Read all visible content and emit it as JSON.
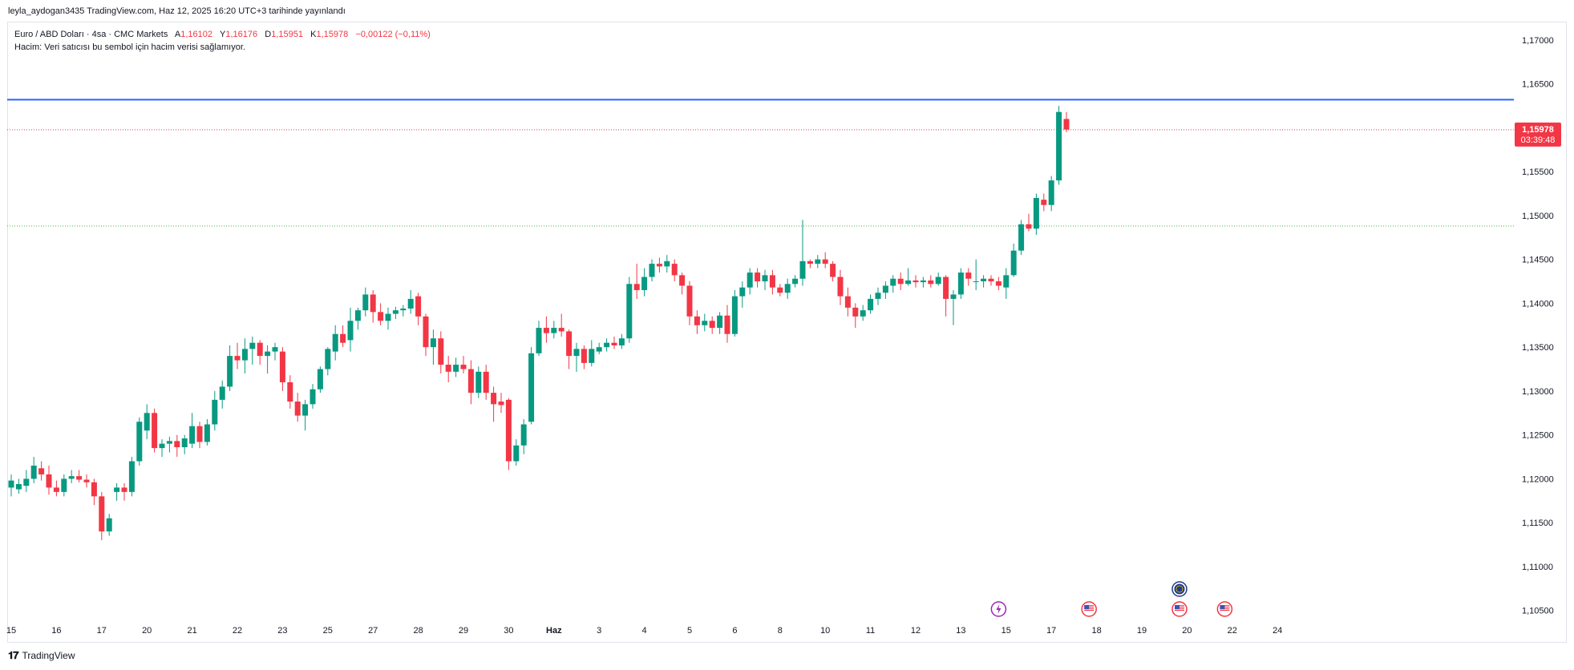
{
  "header": {
    "publish_line": "leyla_aydogan3435 TradingView.com, Haz 12, 2025 16:20 UTC+3 tarihinde yayınlandı"
  },
  "legend": {
    "symbol": "Euro / ABD Doları · 4sa · CMC Markets",
    "open_label": "A",
    "open": "1,16102",
    "high_label": "Y",
    "high": "1,16176",
    "low_label": "D",
    "low": "1,15951",
    "close_label": "K",
    "close": "1,15978",
    "change": "−0,00122 (−0,11%)",
    "volume_note": "Hacim: Veri satıcısı bu sembol için hacim verisi sağlamıyor."
  },
  "footer": {
    "brand": "TradingView",
    "logo_icon": "tradingview-logo-icon"
  },
  "colors": {
    "up": "#089981",
    "down": "#f23645",
    "blue_line": "#2962ff",
    "green_dotted": "#4caf50",
    "red_dotted": "#f23645",
    "axis_text": "#131722"
  },
  "chart_data": {
    "type": "candlestick",
    "symbol": "EURUSD",
    "interval": "4sa",
    "ylim": [
      1.1015,
      1.172
    ],
    "y_ticks": [
      "1,17000",
      "1,16500",
      "1,16000",
      "1,15500",
      "1,15000",
      "1,14500",
      "1,14000",
      "1,13500",
      "1,13000",
      "1,12500",
      "1,12000",
      "1,11500",
      "1,11000",
      "1,10500"
    ],
    "y_tick_values": [
      1.17,
      1.165,
      1.16,
      1.155,
      1.15,
      1.145,
      1.14,
      1.135,
      1.13,
      1.125,
      1.12,
      1.115,
      1.11,
      1.105
    ],
    "x_ticks": [
      {
        "label": "15",
        "index": 0
      },
      {
        "label": "16",
        "index": 6
      },
      {
        "label": "17",
        "index": 12
      },
      {
        "label": "20",
        "index": 18
      },
      {
        "label": "21",
        "index": 24
      },
      {
        "label": "22",
        "index": 30
      },
      {
        "label": "23",
        "index": 36
      },
      {
        "label": "25",
        "index": 42
      },
      {
        "label": "27",
        "index": 48
      },
      {
        "label": "28",
        "index": 54
      },
      {
        "label": "29",
        "index": 60
      },
      {
        "label": "30",
        "index": 66
      },
      {
        "label": "Haz",
        "index": 72
      },
      {
        "label": "3",
        "index": 78
      },
      {
        "label": "4",
        "index": 84
      },
      {
        "label": "5",
        "index": 90
      },
      {
        "label": "6",
        "index": 96
      },
      {
        "label": "8",
        "index": 102
      },
      {
        "label": "10",
        "index": 108
      },
      {
        "label": "11",
        "index": 114
      },
      {
        "label": "12",
        "index": 120
      },
      {
        "label": "13",
        "index": 126
      },
      {
        "label": "15",
        "index": 132
      },
      {
        "label": "17",
        "index": 138
      },
      {
        "label": "18",
        "index": 144
      },
      {
        "label": "19",
        "index": 150
      },
      {
        "label": "20",
        "index": 156
      },
      {
        "label": "22",
        "index": 162
      },
      {
        "label": "24",
        "index": 168
      }
    ],
    "candles": [
      [
        1.119,
        1.1205,
        1.118,
        1.1198
      ],
      [
        1.1188,
        1.12,
        1.1183,
        1.1194
      ],
      [
        1.1192,
        1.121,
        1.1185,
        1.12
      ],
      [
        1.12,
        1.1225,
        1.1195,
        1.1215
      ],
      [
        1.1212,
        1.122,
        1.1198,
        1.1205
      ],
      [
        1.1205,
        1.1215,
        1.1182,
        1.119
      ],
      [
        1.119,
        1.1198,
        1.118,
        1.1185
      ],
      [
        1.1185,
        1.1205,
        1.118,
        1.12
      ],
      [
        1.12,
        1.121,
        1.1195,
        1.1203
      ],
      [
        1.1203,
        1.121,
        1.1196,
        1.1199
      ],
      [
        1.1199,
        1.1205,
        1.119,
        1.1196
      ],
      [
        1.1196,
        1.12,
        1.117,
        1.118
      ],
      [
        1.118,
        1.1185,
        1.113,
        1.114
      ],
      [
        1.114,
        1.116,
        1.1135,
        1.1155
      ],
      [
        1.1185,
        1.1195,
        1.1175,
        1.119
      ],
      [
        1.119,
        1.1195,
        1.1175,
        1.1185
      ],
      [
        1.1185,
        1.1225,
        1.118,
        1.122
      ],
      [
        1.122,
        1.127,
        1.1215,
        1.1265
      ],
      [
        1.1255,
        1.1285,
        1.1245,
        1.1275
      ],
      [
        1.1275,
        1.128,
        1.123,
        1.1235
      ],
      [
        1.1235,
        1.1245,
        1.1225,
        1.124
      ],
      [
        1.124,
        1.1248,
        1.123,
        1.1243
      ],
      [
        1.1243,
        1.125,
        1.1225,
        1.1236
      ],
      [
        1.1236,
        1.125,
        1.1228,
        1.1246
      ],
      [
        1.124,
        1.1275,
        1.1235,
        1.126
      ],
      [
        1.126,
        1.1265,
        1.1235,
        1.1242
      ],
      [
        1.1242,
        1.1268,
        1.1238,
        1.1262
      ],
      [
        1.1262,
        1.13,
        1.1255,
        1.129
      ],
      [
        1.129,
        1.1312,
        1.128,
        1.1305
      ],
      [
        1.1305,
        1.1352,
        1.13,
        1.134
      ],
      [
        1.134,
        1.1355,
        1.1325,
        1.1335
      ],
      [
        1.1335,
        1.136,
        1.132,
        1.1348
      ],
      [
        1.1348,
        1.1362,
        1.133,
        1.1355
      ],
      [
        1.1355,
        1.1358,
        1.133,
        1.134
      ],
      [
        1.134,
        1.1352,
        1.132,
        1.1345
      ],
      [
        1.1345,
        1.1355,
        1.1335,
        1.135
      ],
      [
        1.1345,
        1.135,
        1.13,
        1.131
      ],
      [
        1.131,
        1.1318,
        1.128,
        1.1288
      ],
      [
        1.1288,
        1.1298,
        1.1265,
        1.1272
      ],
      [
        1.1272,
        1.129,
        1.1255,
        1.1285
      ],
      [
        1.1285,
        1.1308,
        1.128,
        1.1302
      ],
      [
        1.1302,
        1.1328,
        1.1298,
        1.1325
      ],
      [
        1.1325,
        1.135,
        1.1318,
        1.1348
      ],
      [
        1.1345,
        1.1375,
        1.1335,
        1.1365
      ],
      [
        1.1365,
        1.1375,
        1.135,
        1.1355
      ],
      [
        1.1358,
        1.1395,
        1.1345,
        1.138
      ],
      [
        1.138,
        1.1395,
        1.137,
        1.1392
      ],
      [
        1.1392,
        1.1418,
        1.1385,
        1.141
      ],
      [
        1.141,
        1.1415,
        1.1378,
        1.139
      ],
      [
        1.139,
        1.14,
        1.1375,
        1.138
      ],
      [
        1.138,
        1.1395,
        1.137,
        1.1388
      ],
      [
        1.1388,
        1.1396,
        1.1382,
        1.1392
      ],
      [
        1.1392,
        1.1398,
        1.1385,
        1.1394
      ],
      [
        1.1394,
        1.1415,
        1.1388,
        1.1405
      ],
      [
        1.1408,
        1.1412,
        1.1375,
        1.1385
      ],
      [
        1.1385,
        1.1388,
        1.134,
        1.135
      ],
      [
        1.135,
        1.137,
        1.133,
        1.136
      ],
      [
        1.136,
        1.1368,
        1.132,
        1.133
      ],
      [
        1.133,
        1.134,
        1.131,
        1.1322
      ],
      [
        1.1322,
        1.1338,
        1.1316,
        1.133
      ],
      [
        1.133,
        1.134,
        1.132,
        1.1325
      ],
      [
        1.1325,
        1.1335,
        1.1285,
        1.1298
      ],
      [
        1.1298,
        1.1328,
        1.1292,
        1.1322
      ],
      [
        1.1322,
        1.133,
        1.129,
        1.1298
      ],
      [
        1.1298,
        1.1305,
        1.1265,
        1.1285
      ],
      [
        1.1288,
        1.1298,
        1.1275,
        1.1284
      ],
      [
        1.129,
        1.1292,
        1.121,
        1.122
      ],
      [
        1.122,
        1.1245,
        1.1215,
        1.1238
      ],
      [
        1.1238,
        1.1268,
        1.1228,
        1.1262
      ],
      [
        1.1265,
        1.135,
        1.1262,
        1.1343
      ],
      [
        1.1343,
        1.138,
        1.134,
        1.1372
      ],
      [
        1.1372,
        1.1385,
        1.1355,
        1.1366
      ],
      [
        1.1366,
        1.138,
        1.136,
        1.1372
      ],
      [
        1.1372,
        1.1388,
        1.1362,
        1.1368
      ],
      [
        1.1368,
        1.137,
        1.1325,
        1.134
      ],
      [
        1.134,
        1.1355,
        1.1322,
        1.1348
      ],
      [
        1.1348,
        1.1352,
        1.1325,
        1.1332
      ],
      [
        1.1332,
        1.1358,
        1.1328,
        1.1348
      ],
      [
        1.1345,
        1.1355,
        1.1342,
        1.135
      ],
      [
        1.135,
        1.136,
        1.1345,
        1.1355
      ],
      [
        1.1355,
        1.1362,
        1.1348,
        1.1352
      ],
      [
        1.1352,
        1.1365,
        1.1348,
        1.136
      ],
      [
        1.136,
        1.143,
        1.1355,
        1.1422
      ],
      [
        1.1422,
        1.1445,
        1.1405,
        1.1415
      ],
      [
        1.1415,
        1.144,
        1.1408,
        1.143
      ],
      [
        1.143,
        1.145,
        1.1425,
        1.1445
      ],
      [
        1.1445,
        1.1452,
        1.1435,
        1.1442
      ],
      [
        1.1442,
        1.1455,
        1.1435,
        1.1448
      ],
      [
        1.1445,
        1.145,
        1.1425,
        1.1432
      ],
      [
        1.1432,
        1.1435,
        1.141,
        1.142
      ],
      [
        1.142,
        1.1425,
        1.1375,
        1.1385
      ],
      [
        1.1385,
        1.1392,
        1.1365,
        1.1375
      ],
      [
        1.1375,
        1.1388,
        1.1368,
        1.138
      ],
      [
        1.138,
        1.1385,
        1.1365,
        1.1372
      ],
      [
        1.1372,
        1.139,
        1.1365,
        1.1386
      ],
      [
        1.1386,
        1.1398,
        1.1355,
        1.1365
      ],
      [
        1.1365,
        1.1415,
        1.1362,
        1.1408
      ],
      [
        1.1408,
        1.1425,
        1.1395,
        1.1418
      ],
      [
        1.1418,
        1.144,
        1.141,
        1.1435
      ],
      [
        1.1435,
        1.144,
        1.1418,
        1.1425
      ],
      [
        1.1425,
        1.1438,
        1.1415,
        1.1432
      ],
      [
        1.1432,
        1.1438,
        1.141,
        1.1418
      ],
      [
        1.1418,
        1.1422,
        1.1408,
        1.1412
      ],
      [
        1.1412,
        1.1428,
        1.1405,
        1.1422
      ],
      [
        1.1422,
        1.1432,
        1.1418,
        1.1428
      ],
      [
        1.1428,
        1.1495,
        1.142,
        1.1448
      ],
      [
        1.1448,
        1.145,
        1.144,
        1.1445
      ],
      [
        1.1445,
        1.1455,
        1.144,
        1.145
      ],
      [
        1.145,
        1.1458,
        1.144,
        1.1445
      ],
      [
        1.1445,
        1.1448,
        1.1425,
        1.143
      ],
      [
        1.143,
        1.1438,
        1.1398,
        1.1408
      ],
      [
        1.1408,
        1.1418,
        1.1385,
        1.1395
      ],
      [
        1.1395,
        1.14,
        1.1372,
        1.1385
      ],
      [
        1.1385,
        1.1398,
        1.138,
        1.1392
      ],
      [
        1.1392,
        1.141,
        1.1388,
        1.1405
      ],
      [
        1.1405,
        1.1418,
        1.1398,
        1.1412
      ],
      [
        1.1412,
        1.1425,
        1.1405,
        1.142
      ],
      [
        1.142,
        1.1432,
        1.1412,
        1.1428
      ],
      [
        1.1428,
        1.1435,
        1.1415,
        1.1422
      ],
      [
        1.1422,
        1.144,
        1.142,
        1.1426
      ],
      [
        1.1426,
        1.1432,
        1.1418,
        1.1424
      ],
      [
        1.1424,
        1.143,
        1.1418,
        1.1426
      ],
      [
        1.1426,
        1.1432,
        1.1418,
        1.1422
      ],
      [
        1.1422,
        1.1435,
        1.142,
        1.143
      ],
      [
        1.143,
        1.1432,
        1.1385,
        1.1405
      ],
      [
        1.1405,
        1.1415,
        1.1375,
        1.141
      ],
      [
        1.141,
        1.144,
        1.1405,
        1.1435
      ],
      [
        1.1435,
        1.144,
        1.142,
        1.1428
      ],
      [
        1.1425,
        1.145,
        1.1415,
        1.1425
      ],
      [
        1.1425,
        1.1432,
        1.1418,
        1.1428
      ],
      [
        1.1428,
        1.1432,
        1.142,
        1.1425
      ],
      [
        1.1425,
        1.143,
        1.1415,
        1.142
      ],
      [
        1.1418,
        1.144,
        1.1405,
        1.1432
      ],
      [
        1.1432,
        1.1468,
        1.143,
        1.146
      ],
      [
        1.146,
        1.1495,
        1.1455,
        1.149
      ],
      [
        1.149,
        1.1502,
        1.1482,
        1.1485
      ],
      [
        1.1485,
        1.1525,
        1.1478,
        1.152
      ],
      [
        1.1518,
        1.1525,
        1.1505,
        1.1512
      ],
      [
        1.1512,
        1.1545,
        1.1505,
        1.154
      ],
      [
        1.154,
        1.1625,
        1.1535,
        1.1618
      ],
      [
        1.161,
        1.1618,
        1.1595,
        1.1598
      ]
    ],
    "horizontal_lines": [
      {
        "name": "blue-level-line",
        "price": 1.1632,
        "style": "solid",
        "color": "#2962ff"
      },
      {
        "name": "current-price-line",
        "price": 1.15978,
        "style": "dotted",
        "color": "#f23645"
      },
      {
        "name": "green-dotted-line",
        "price": 1.1488,
        "style": "dotted",
        "color": "#4caf50"
      }
    ],
    "price_tag": {
      "price": "1,15978",
      "countdown": "03:39:48"
    },
    "event_markers": [
      {
        "name": "lightning-event-icon",
        "index": 131,
        "row": 0,
        "kind": "lightning"
      },
      {
        "name": "us-flag-event-icon",
        "index": 143,
        "row": 0,
        "kind": "us"
      },
      {
        "name": "eu-flag-event-icon",
        "index": 155,
        "row": 1,
        "kind": "eu"
      },
      {
        "name": "us-flag-event-icon",
        "index": 155,
        "row": 0,
        "kind": "us"
      },
      {
        "name": "us-flag-event-icon",
        "index": 161,
        "row": 0,
        "kind": "us"
      }
    ]
  }
}
